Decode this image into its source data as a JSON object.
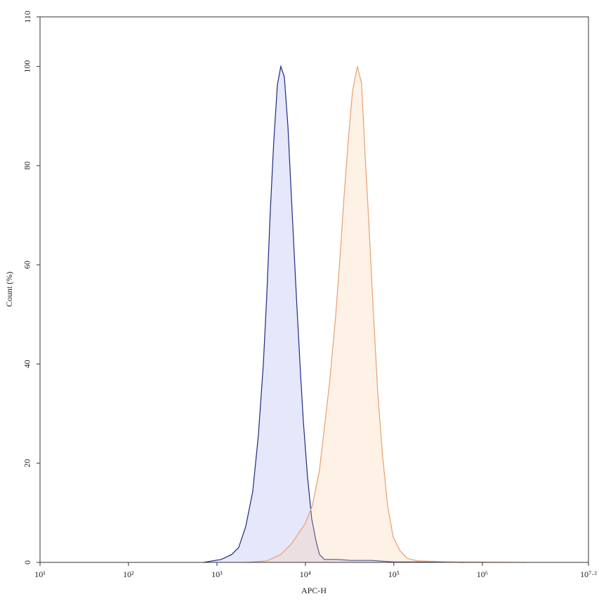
{
  "chart_data": {
    "type": "line",
    "x_label": "APC-H",
    "y_label": "Count (%)",
    "xscale": "log",
    "xlim": [
      10,
      15848931.92
    ],
    "xticks": [
      {
        "value": 10,
        "label": "10¹"
      },
      {
        "value": 100,
        "label": "10²"
      },
      {
        "value": 1000,
        "label": "10³"
      },
      {
        "value": 10000,
        "label": "10⁴"
      },
      {
        "value": 100000,
        "label": "10⁵"
      },
      {
        "value": 1000000,
        "label": "10⁶"
      },
      {
        "value": 15848931.92,
        "label": "10⁷·²"
      }
    ],
    "ylim": [
      0,
      110
    ],
    "yticks": [
      0,
      20,
      40,
      60,
      80,
      100,
      110
    ],
    "series": [
      {
        "color": "#1f2a80",
        "fill": "rgba(170,175,240,0.30)",
        "x": [
          706,
          1117,
          1469,
          1762,
          2113,
          2540,
          2940,
          3340,
          3656,
          4010,
          4395,
          4818,
          5275,
          5780,
          6340,
          7065,
          7880,
          8790,
          9460,
          10560,
          11780,
          13150,
          14420,
          16370,
          22750,
          32800,
          56800,
          98200,
          204000,
          611000
        ],
        "values": [
          0,
          0.6,
          1.6,
          3,
          7.2,
          14.3,
          25.6,
          39.7,
          53.8,
          70.8,
          85,
          96.3,
          100,
          97.9,
          88,
          71,
          54.1,
          38.5,
          28.6,
          17.3,
          8.8,
          4.4,
          1.6,
          0.6,
          0.6,
          0.4,
          0.4,
          0.1,
          0.1,
          0
        ]
      },
      {
        "color": "#e8a070",
        "fill": "rgba(250,205,165,0.28)",
        "x": [
          2113,
          3656,
          5275,
          6930,
          8340,
          10000,
          12000,
          14420,
          16370,
          18950,
          21930,
          24470,
          27330,
          30500,
          34040,
          38650,
          43150,
          47300,
          52760,
          58880,
          65710,
          74600,
          84800,
          98200,
          117800,
          141500,
          186400,
          508000,
          3162000
        ],
        "values": [
          0,
          0.3,
          1.6,
          3.7,
          5.8,
          7.9,
          11.5,
          18.6,
          27.1,
          37,
          49.6,
          60.9,
          73.7,
          85,
          94.9,
          100,
          96.6,
          82.4,
          66.6,
          49.9,
          34.3,
          21.5,
          11.5,
          5.1,
          2.3,
          0.8,
          0.3,
          0.1,
          0
        ]
      }
    ]
  }
}
